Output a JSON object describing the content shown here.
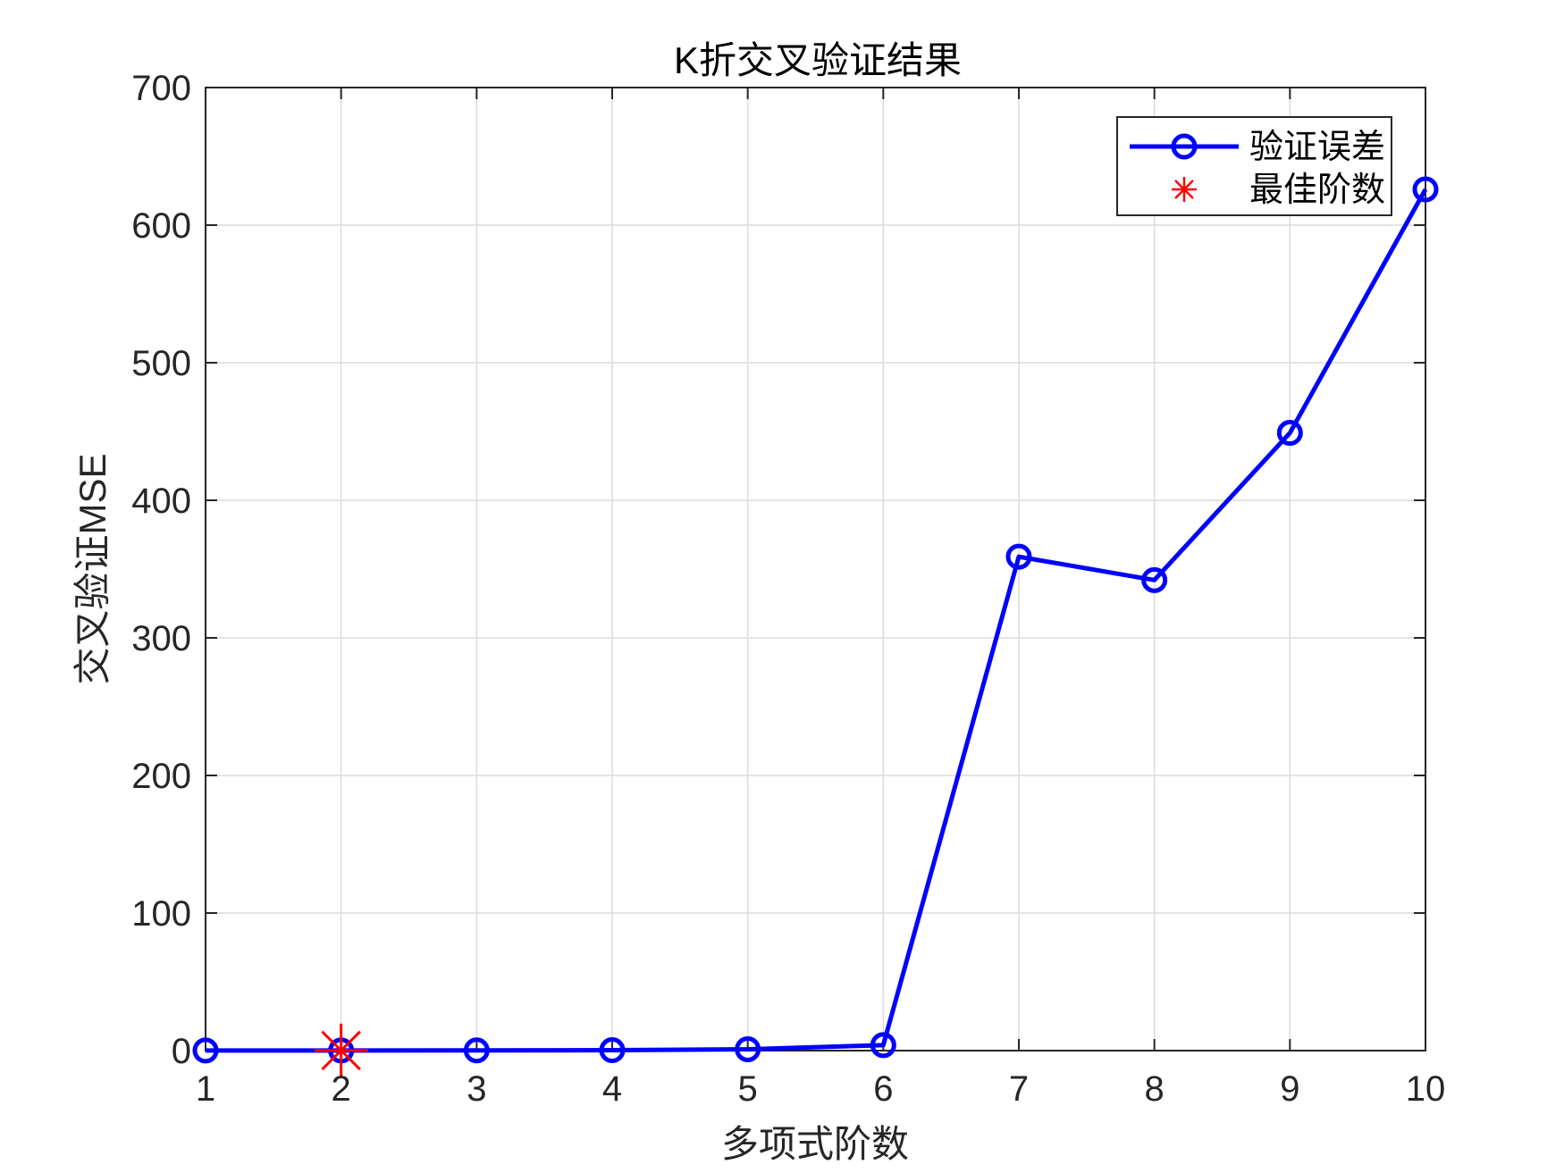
{
  "chart_data": {
    "type": "line",
    "title": "K折交叉验证结果",
    "xlabel": "多项式阶数",
    "ylabel": "交叉验证MSE",
    "xlim": [
      1,
      10
    ],
    "ylim": [
      0,
      700
    ],
    "xticks": [
      1,
      2,
      3,
      4,
      5,
      6,
      7,
      8,
      9,
      10
    ],
    "yticks": [
      0,
      100,
      200,
      300,
      400,
      500,
      600,
      700
    ],
    "grid": true,
    "legend_position": "top-right",
    "series": [
      {
        "name": "验证误差",
        "color": "#0000ff",
        "marker": "circle",
        "x": [
          1,
          2,
          3,
          4,
          5,
          6,
          7,
          8,
          9,
          10
        ],
        "y": [
          0.1,
          0.1,
          0.2,
          0.3,
          1,
          4,
          359,
          342,
          449,
          626
        ]
      },
      {
        "name": "最佳阶数",
        "color": "#ff0000",
        "marker": "asterisk",
        "x": [
          2
        ],
        "y": [
          0.1
        ]
      }
    ]
  }
}
